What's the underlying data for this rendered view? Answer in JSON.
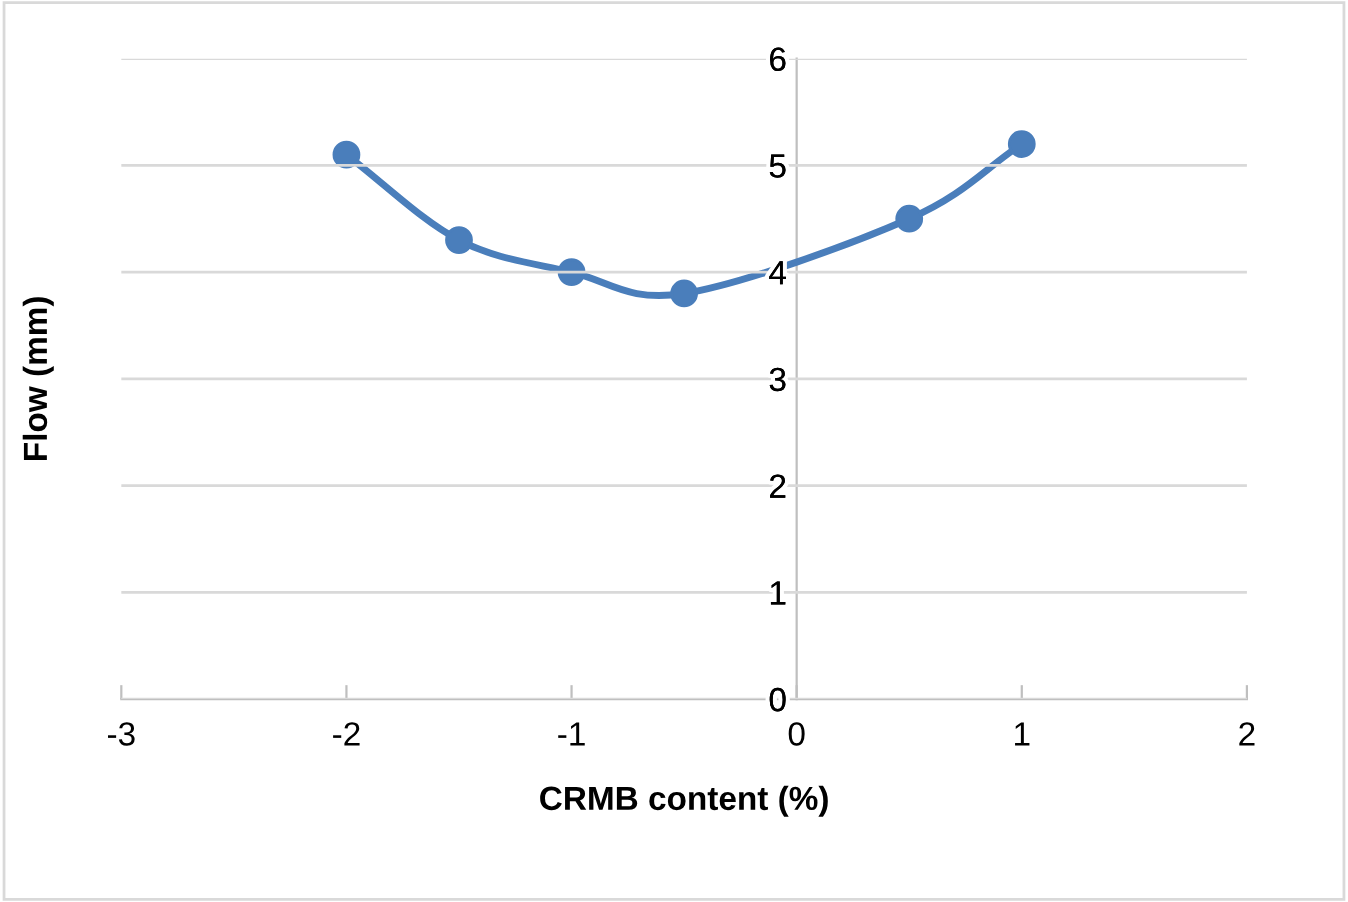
{
  "chart_data": {
    "type": "line",
    "xlabel": "CRMB content (%)",
    "ylabel": "Flow (mm)",
    "x": [
      -2,
      -1.5,
      -1,
      -0.5,
      0.5,
      1
    ],
    "series": [
      {
        "color": "#4a7ebb",
        "values": [
          5.1,
          4.3,
          4.0,
          3.8,
          4.5,
          5.2
        ]
      }
    ],
    "xlim": [
      -3,
      2
    ],
    "xticks": [
      -3,
      -2,
      -1,
      0,
      1,
      2
    ],
    "ylim": [
      0,
      6
    ],
    "yticks": [
      0,
      1,
      2,
      3,
      4,
      5,
      6
    ],
    "grid": "y",
    "marker": "circle",
    "line_style": "solid",
    "legend": false
  }
}
